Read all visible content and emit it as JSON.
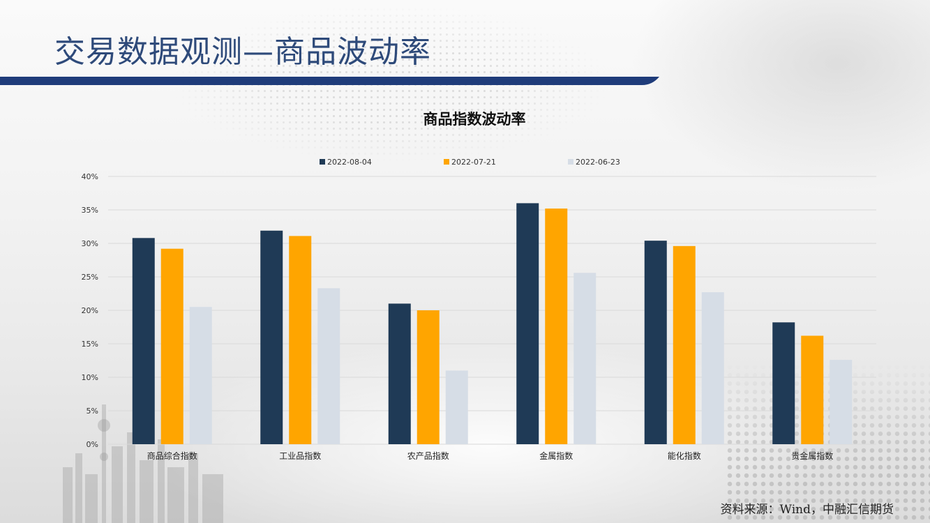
{
  "slide": {
    "title": "交易数据观测—商品波动率",
    "source": "资料来源：Wind，中融汇信期货"
  },
  "colors": {
    "title_text": "#2e4a7a",
    "title_bar": "#1f3c7a",
    "grid": "#d9d9d9"
  },
  "chart_data": {
    "type": "bar",
    "title": "商品指数波动率",
    "categories": [
      "商品综合指数",
      "工业品指数",
      "农产品指数",
      "金属指数",
      "能化指数",
      "贵金属指数"
    ],
    "series": [
      {
        "name": "2022-08-04",
        "color": "#1f3a56",
        "values": [
          30.8,
          31.9,
          21.0,
          36.0,
          30.4,
          18.2
        ]
      },
      {
        "name": "2022-07-21",
        "color": "#ffa500",
        "values": [
          29.2,
          31.1,
          20.0,
          35.2,
          29.6,
          16.2
        ]
      },
      {
        "name": "2022-06-23",
        "color": "#d6dde6",
        "values": [
          20.5,
          23.3,
          11.0,
          25.6,
          22.7,
          12.6
        ]
      }
    ],
    "ylim": [
      0,
      40
    ],
    "yticks": [
      "0%",
      "5%",
      "10%",
      "15%",
      "20%",
      "25%",
      "30%",
      "35%",
      "40%"
    ],
    "ytick_values": [
      0,
      5,
      10,
      15,
      20,
      25,
      30,
      35,
      40
    ],
    "xlabel": "",
    "ylabel": "",
    "grid": true,
    "legend": "top"
  }
}
